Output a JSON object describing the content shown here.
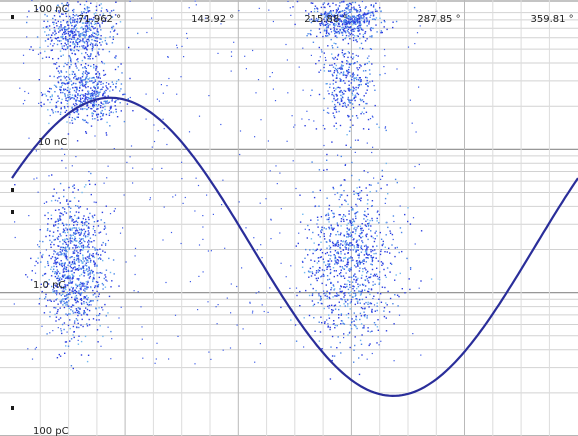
{
  "chart_data": {
    "type": "scatter",
    "title": "",
    "xlabel": "",
    "ylabel": "",
    "x_unit": "°",
    "xlim": [
      0,
      360
    ],
    "y_scale": "log",
    "ylim_label": [
      "100 pC",
      "100 nC"
    ],
    "x_tick_labels": [
      "71.962 °",
      "143.92 °",
      "215.88 °",
      "287.85 °",
      "359.81 °"
    ],
    "x_tick_values": [
      71.962,
      143.92,
      215.88,
      287.85,
      359.81
    ],
    "y_tick_labels": [
      "100 nC",
      "10 nC",
      "1.0 nC",
      "100 pC"
    ],
    "y_tick_values_nC": [
      100,
      10,
      1.0,
      0.1
    ],
    "grid": true,
    "series": [
      {
        "kind": "scatter",
        "color": "#2c3fe0",
        "clusters": [
          {
            "x_range_deg": [
              20,
              65
            ],
            "y_range_nC": [
              40,
              110
            ],
            "density": "high"
          },
          {
            "x_range_deg": [
              22,
              70
            ],
            "y_range_nC": [
              15,
              40
            ],
            "density": "high"
          },
          {
            "x_range_deg": [
              18,
              60
            ],
            "y_range_nC": [
              0.5,
              5
            ],
            "density": "very high"
          },
          {
            "x_range_deg": [
              190,
              235
            ],
            "y_range_nC": [
              60,
              110
            ],
            "density": "high"
          },
          {
            "x_range_deg": [
              195,
              230
            ],
            "y_range_nC": [
              15,
              60
            ],
            "density": "medium"
          },
          {
            "x_range_deg": [
              185,
              245
            ],
            "y_range_nC": [
              0.45,
              6
            ],
            "density": "very high"
          }
        ]
      },
      {
        "kind": "line",
        "name": "",
        "color": "#2a2e9a",
        "shape": "sine",
        "x": [
          0,
          45,
          90,
          135,
          180,
          225,
          270,
          315,
          360
        ],
        "y_nC": [
          3.5,
          12.2,
          22.9,
          12.2,
          1.37,
          0.39,
          0.21,
          0.39,
          3.5
        ]
      }
    ]
  }
}
